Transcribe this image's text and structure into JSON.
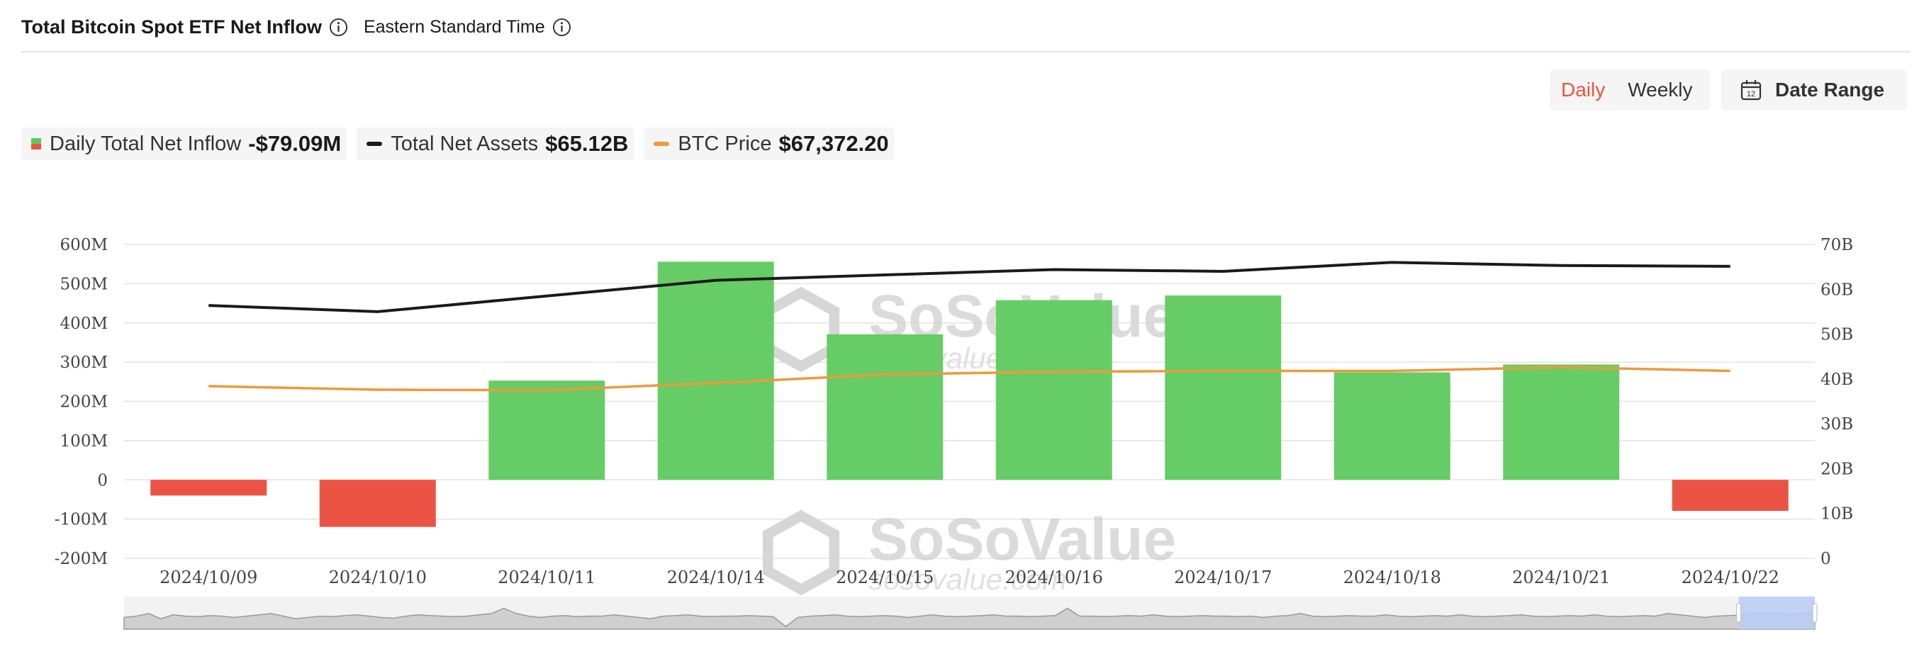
{
  "header": {
    "title": "Total Bitcoin Spot ETF Net Inflow",
    "timezone": "Eastern Standard Time"
  },
  "controls": {
    "daily": "Daily",
    "weekly": "Weekly",
    "date_range": "Date Range",
    "selected": "Daily",
    "calendar_day": "12"
  },
  "legend": {
    "inflow_label": "Daily Total Net Inflow",
    "inflow_value": "-$79.09M",
    "assets_label": "Total Net Assets",
    "assets_value": "$65.12B",
    "btc_label": "BTC Price",
    "btc_value": "$67,372.20"
  },
  "watermark": {
    "brand": "SoSoValue",
    "url": "sosovalue.com"
  },
  "colors": {
    "positive": "#66cd66",
    "negative": "#eb5445",
    "assets_line": "#1a1a1a",
    "btc_line": "#ec9a3c",
    "accent": "#e8553e"
  },
  "chart_data": {
    "type": "bar",
    "categories": [
      "2024/10/09",
      "2024/10/10",
      "2024/10/11",
      "2024/10/14",
      "2024/10/15",
      "2024/10/16",
      "2024/10/17",
      "2024/10/18",
      "2024/10/21",
      "2024/10/22"
    ],
    "left_axis": {
      "ylim": [
        -200,
        600
      ],
      "ticks": [
        "600M",
        "500M",
        "400M",
        "300M",
        "200M",
        "100M",
        "0",
        "-100M",
        "-200M"
      ]
    },
    "right_axis": {
      "ylim": [
        0,
        70
      ],
      "ticks": [
        "70B",
        "60B",
        "50B",
        "40B",
        "30B",
        "20B",
        "10B",
        "0"
      ]
    },
    "series": [
      {
        "name": "Daily Total Net Inflow",
        "type": "bar",
        "axis": "left",
        "unit": "M",
        "values": [
          -40,
          -120,
          253,
          556,
          371,
          458,
          470,
          274,
          294,
          -79.09
        ]
      },
      {
        "name": "Total Net Assets",
        "type": "line",
        "axis": "right",
        "unit": "B",
        "values": [
          56.4,
          55.0,
          58.5,
          62.0,
          63.2,
          64.4,
          64.0,
          66.0,
          65.3,
          65.12
        ]
      },
      {
        "name": "BTC Price",
        "type": "line",
        "axis": "right",
        "values": [
          38.4,
          37.6,
          37.5,
          39.1,
          41.0,
          41.6,
          41.8,
          41.8,
          42.6,
          41.8
        ]
      }
    ],
    "navigator": {
      "profile": [
        0.45,
        0.5,
        0.6,
        0.4,
        0.55,
        0.5,
        0.48,
        0.52,
        0.5,
        0.45,
        0.5,
        0.55,
        0.6,
        0.5,
        0.4,
        0.45,
        0.5,
        0.48,
        0.52,
        0.55,
        0.5,
        0.45,
        0.42,
        0.5,
        0.55,
        0.52,
        0.5,
        0.48,
        0.5,
        0.55,
        0.6,
        0.8,
        0.6,
        0.5,
        0.45,
        0.5,
        0.52,
        0.48,
        0.5,
        0.5,
        0.55,
        0.5,
        0.45,
        0.4,
        0.5,
        0.52,
        0.55,
        0.5,
        0.48,
        0.5,
        0.5,
        0.52,
        0.5,
        0.48,
        0.1,
        0.45,
        0.5,
        0.52,
        0.55,
        0.5,
        0.48,
        0.5,
        0.52,
        0.5,
        0.45,
        0.5,
        0.55,
        0.5,
        0.48,
        0.5,
        0.52,
        0.55,
        0.5,
        0.5,
        0.48,
        0.5,
        0.52,
        0.8,
        0.5,
        0.5,
        0.48,
        0.5,
        0.52,
        0.5,
        0.55,
        0.5,
        0.48,
        0.5,
        0.52,
        0.5,
        0.5,
        0.48,
        0.5,
        0.45,
        0.5,
        0.52,
        0.6,
        0.5,
        0.48,
        0.5,
        0.52,
        0.5,
        0.5,
        0.55,
        0.5,
        0.48,
        0.5,
        0.52,
        0.5,
        0.55,
        0.5,
        0.48,
        0.5,
        0.52,
        0.55,
        0.5,
        0.48,
        0.5,
        0.52,
        0.5,
        0.55,
        0.5,
        0.48,
        0.5,
        0.52,
        0.5,
        0.6,
        0.55,
        0.5,
        0.45,
        0.5,
        0.52,
        0.55,
        0.6,
        0.62,
        0.6,
        0.58,
        0.6,
        0.6
      ],
      "selection": [
        0.955,
        1.0
      ]
    }
  }
}
